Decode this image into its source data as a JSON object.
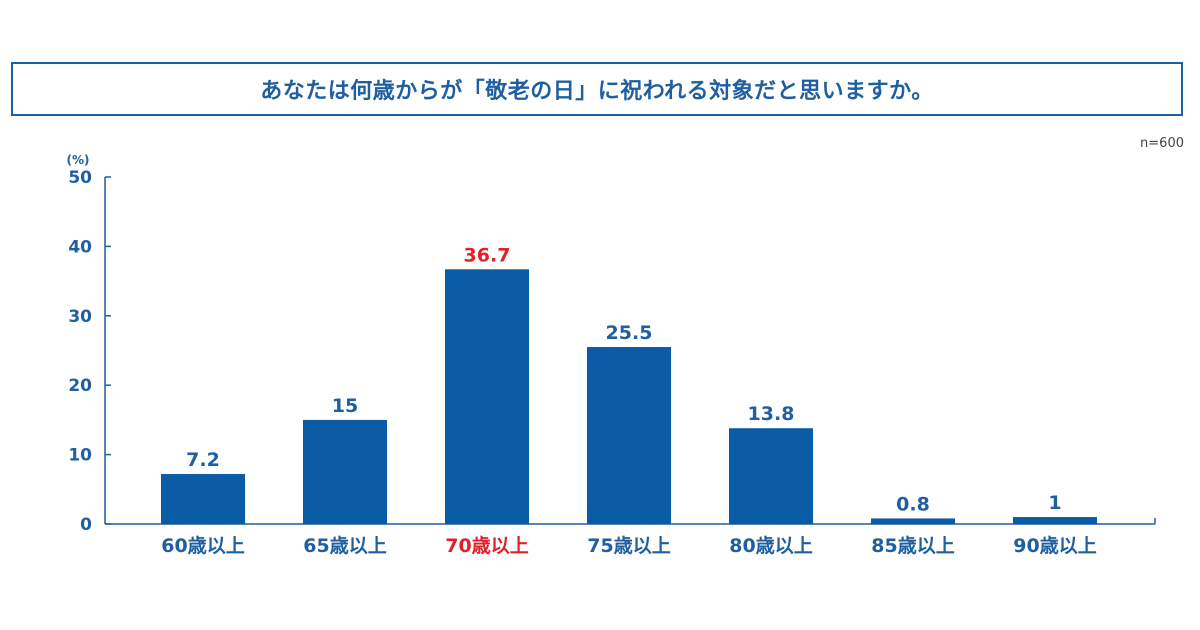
{
  "chart_data": {
    "type": "bar",
    "title": "あなたは何歳からが「敬老の日」に祝われる対象だと思いますか。",
    "sample_size": "n=600",
    "ylabel_unit": "(%)",
    "ylim": [
      0,
      50
    ],
    "yticks": [
      0,
      10,
      20,
      30,
      40,
      50
    ],
    "categories": [
      "60歳以上",
      "65歳以上",
      "70歳以上",
      "75歳以上",
      "80歳以上",
      "85歳以上",
      "90歳以上"
    ],
    "values": [
      7.2,
      15,
      36.7,
      25.5,
      13.8,
      0.8,
      1
    ],
    "value_labels": [
      "7.2",
      "15",
      "36.7",
      "25.5",
      "13.8",
      "0.8",
      "1"
    ],
    "highlight_index": 2,
    "colors": {
      "bar": "#0a5ca6",
      "text": "#1f5fa0",
      "highlight": "#e0202a",
      "axis": "#1f5fa0"
    }
  }
}
